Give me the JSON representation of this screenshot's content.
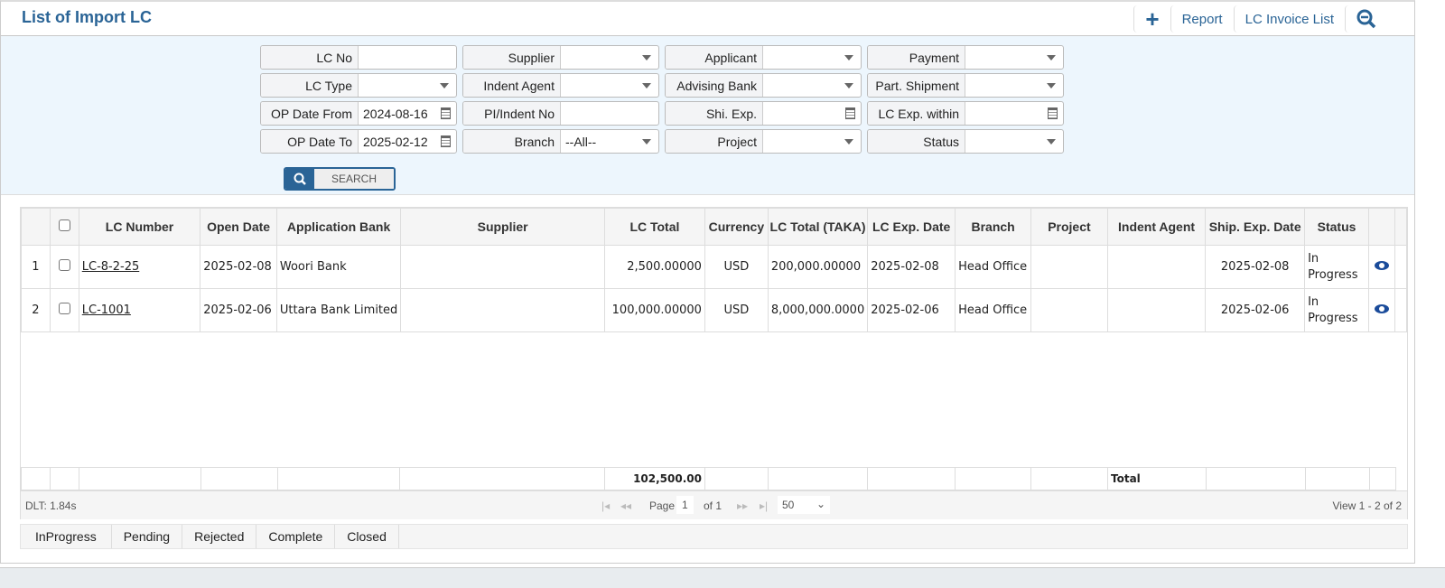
{
  "header": {
    "title": "List of Import LC",
    "actions": {
      "add": "+",
      "report": "Report",
      "invoice_list": "LC Invoice List"
    }
  },
  "filters": {
    "lc_no": {
      "label": "LC No",
      "value": ""
    },
    "supplier": {
      "label": "Supplier",
      "value": ""
    },
    "applicant": {
      "label": "Applicant",
      "value": ""
    },
    "payment": {
      "label": "Payment",
      "value": ""
    },
    "lc_type": {
      "label": "LC Type",
      "value": ""
    },
    "indent_agent": {
      "label": "Indent Agent",
      "value": ""
    },
    "advising_bank": {
      "label": "Advising Bank",
      "value": ""
    },
    "part_shipment": {
      "label": "Part. Shipment",
      "value": ""
    },
    "op_date_from": {
      "label": "OP Date From",
      "value": "2024-08-16"
    },
    "pi_indent_no": {
      "label": "PI/Indent No",
      "value": ""
    },
    "shi_exp": {
      "label": "Shi. Exp.",
      "value": ""
    },
    "lc_exp_within": {
      "label": "LC Exp. within",
      "value": ""
    },
    "op_date_to": {
      "label": "OP Date To",
      "value": "2025-02-12"
    },
    "branch": {
      "label": "Branch",
      "value": "--All--"
    },
    "project": {
      "label": "Project",
      "value": ""
    },
    "status": {
      "label": "Status",
      "value": ""
    },
    "search_label": "SEARCH"
  },
  "table": {
    "columns": [
      "LC Number",
      "Open Date",
      "Application Bank",
      "Supplier",
      "LC Total",
      "Currency",
      "LC Total (TAKA)",
      "LC Exp. Date",
      "Branch",
      "Project",
      "Indent Agent",
      "Ship. Exp. Date",
      "Status"
    ],
    "rows": [
      {
        "n": "1",
        "lc_number": "LC-8-2-25",
        "open_date": "2025-02-08",
        "bank": "Woori Bank",
        "supplier": "",
        "lc_total": "2,500.00000",
        "currency": "USD",
        "lc_total_taka": "200,000.00000",
        "lc_exp_date": "2025-02-08",
        "branch": "Head Office",
        "project": "",
        "indent_agent": "",
        "ship_exp_date": "2025-02-08",
        "status": "In Progress"
      },
      {
        "n": "2",
        "lc_number": "LC-1001",
        "open_date": "2025-02-06",
        "bank": "Uttara Bank Limited",
        "supplier": "",
        "lc_total": "100,000.00000",
        "currency": "USD",
        "lc_total_taka": "8,000,000.0000",
        "lc_exp_date": "2025-02-06",
        "branch": "Head Office",
        "project": "",
        "indent_agent": "",
        "ship_exp_date": "2025-02-06",
        "status": "In Progress"
      }
    ],
    "footer": {
      "lc_total": "102,500.00",
      "total_label": "Total"
    }
  },
  "pager": {
    "dlt": "DLT: 1.84s",
    "page_label": "Page",
    "page": "1",
    "of": "of 1",
    "page_size": "50",
    "view": "View 1 - 2 of 2"
  },
  "status_tabs": [
    "InProgress",
    "Pending",
    "Rejected",
    "Complete",
    "Closed"
  ],
  "colors": {
    "accent": "#2a6496",
    "filter_bg": "#edf6fd",
    "eye": "#1a4b9a"
  }
}
